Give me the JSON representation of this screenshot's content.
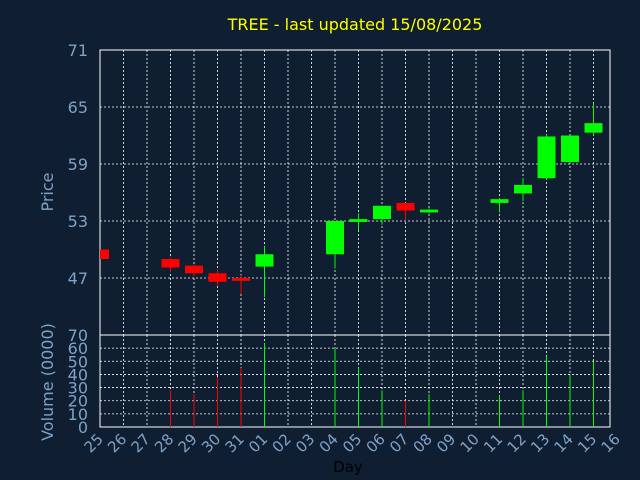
{
  "chart_data": [
    {
      "type": "candlestick",
      "title": "TREE - last updated 15/08/2025",
      "ylabel": "Price",
      "xlabel": "Day",
      "ylim": [
        41,
        71
      ],
      "yticks": [
        47,
        53,
        59,
        65,
        71
      ],
      "grid": true,
      "colors": {
        "up": "#00ff00",
        "down": "#ff0000"
      },
      "categories": [
        "25",
        "26",
        "27",
        "28",
        "29",
        "30",
        "31",
        "01",
        "02",
        "03",
        "04",
        "05",
        "06",
        "07",
        "08",
        "09",
        "10",
        "11",
        "12",
        "13",
        "14",
        "15",
        "16"
      ],
      "candles": [
        {
          "day": "25",
          "open": 50.0,
          "close": 49.0,
          "high": 50.0,
          "low": 49.0
        },
        {
          "day": "28",
          "open": 49.0,
          "close": 48.1,
          "high": 49.1,
          "low": 47.6
        },
        {
          "day": "29",
          "open": 48.3,
          "close": 47.5,
          "high": 48.4,
          "low": 47.2
        },
        {
          "day": "30",
          "open": 47.5,
          "close": 46.6,
          "high": 47.9,
          "low": 46.2
        },
        {
          "day": "31",
          "open": 47.0,
          "close": 46.7,
          "high": 47.3,
          "low": 45.3
        },
        {
          "day": "01",
          "open": 48.2,
          "close": 49.5,
          "high": 50.4,
          "low": 45.0
        },
        {
          "day": "04",
          "open": 49.5,
          "close": 53.0,
          "high": 53.0,
          "low": 48.0
        },
        {
          "day": "05",
          "open": 52.9,
          "close": 53.2,
          "high": 53.8,
          "low": 52.0
        },
        {
          "day": "06",
          "open": 53.2,
          "close": 54.6,
          "high": 54.6,
          "low": 52.6
        },
        {
          "day": "07",
          "open": 54.9,
          "close": 54.1,
          "high": 54.9,
          "low": 53.1
        },
        {
          "day": "08",
          "open": 53.9,
          "close": 54.2,
          "high": 54.3,
          "low": 53.8
        },
        {
          "day": "11",
          "open": 54.9,
          "close": 55.3,
          "high": 55.4,
          "low": 53.9
        },
        {
          "day": "12",
          "open": 55.9,
          "close": 56.8,
          "high": 57.5,
          "low": 55.1
        },
        {
          "day": "13",
          "open": 57.5,
          "close": 61.9,
          "high": 62.2,
          "low": 57.3
        },
        {
          "day": "14",
          "open": 59.2,
          "close": 62.0,
          "high": 62.0,
          "low": 59.1
        },
        {
          "day": "15",
          "open": 62.3,
          "close": 63.3,
          "high": 65.4,
          "low": 62.0
        }
      ]
    },
    {
      "type": "bar",
      "ylabel": "Volume (0000)",
      "ylim": [
        0,
        70
      ],
      "yticks": [
        0,
        10,
        20,
        30,
        40,
        50,
        60,
        70
      ],
      "grid": true,
      "categories": [
        "25",
        "26",
        "27",
        "28",
        "29",
        "30",
        "31",
        "01",
        "02",
        "03",
        "04",
        "05",
        "06",
        "07",
        "08",
        "09",
        "10",
        "11",
        "12",
        "13",
        "14",
        "15",
        "16"
      ],
      "series": [
        {
          "values": [
            0,
            0,
            0,
            28,
            25,
            38,
            45,
            64,
            0,
            0,
            60,
            45,
            28,
            20,
            25,
            0,
            0,
            24,
            28,
            54,
            40,
            50,
            0
          ],
          "colors": [
            "down",
            "none",
            "none",
            "down",
            "down",
            "down",
            "down",
            "up",
            "none",
            "none",
            "up",
            "up",
            "up",
            "down",
            "up",
            "none",
            "none",
            "up",
            "up",
            "up",
            "up",
            "up",
            "none"
          ]
        }
      ]
    }
  ]
}
